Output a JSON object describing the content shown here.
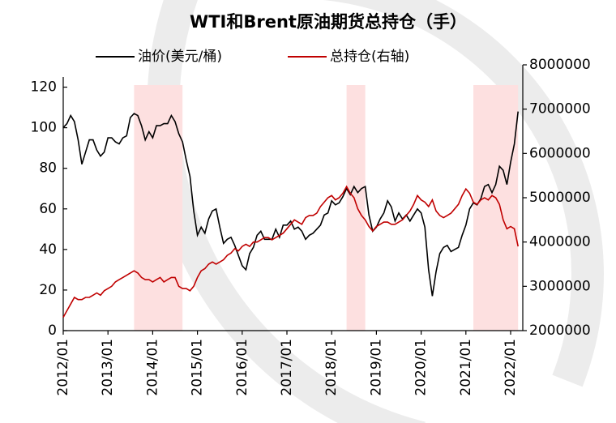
{
  "chart_data": {
    "type": "line",
    "title": "WTI和Brent原油期货总持仓（手）",
    "x": [
      "2012/01",
      "2012/02",
      "2012/03",
      "2012/04",
      "2012/05",
      "2012/06",
      "2012/07",
      "2012/08",
      "2012/09",
      "2012/10",
      "2012/11",
      "2012/12",
      "2013/01",
      "2013/02",
      "2013/03",
      "2013/04",
      "2013/05",
      "2013/06",
      "2013/07",
      "2013/08",
      "2013/09",
      "2013/10",
      "2013/11",
      "2013/12",
      "2014/01",
      "2014/02",
      "2014/03",
      "2014/04",
      "2014/05",
      "2014/06",
      "2014/07",
      "2014/08",
      "2014/09",
      "2014/10",
      "2014/11",
      "2014/12",
      "2015/01",
      "2015/02",
      "2015/03",
      "2015/04",
      "2015/05",
      "2015/06",
      "2015/07",
      "2015/08",
      "2015/09",
      "2015/10",
      "2015/11",
      "2015/12",
      "2016/01",
      "2016/02",
      "2016/03",
      "2016/04",
      "2016/05",
      "2016/06",
      "2016/07",
      "2016/08",
      "2016/09",
      "2016/10",
      "2016/11",
      "2016/12",
      "2017/01",
      "2017/02",
      "2017/03",
      "2017/04",
      "2017/05",
      "2017/06",
      "2017/07",
      "2017/08",
      "2017/09",
      "2017/10",
      "2017/11",
      "2017/12",
      "2018/01",
      "2018/02",
      "2018/03",
      "2018/04",
      "2018/05",
      "2018/06",
      "2018/07",
      "2018/08",
      "2018/09",
      "2018/10",
      "2018/11",
      "2018/12",
      "2019/01",
      "2019/02",
      "2019/03",
      "2019/04",
      "2019/05",
      "2019/06",
      "2019/07",
      "2019/08",
      "2019/09",
      "2019/10",
      "2019/11",
      "2019/12",
      "2020/01",
      "2020/02",
      "2020/03",
      "2020/04",
      "2020/05",
      "2020/06",
      "2020/07",
      "2020/08",
      "2020/09",
      "2020/10",
      "2020/11",
      "2020/12",
      "2021/01",
      "2021/02",
      "2021/03",
      "2021/04",
      "2021/05",
      "2021/06",
      "2021/07",
      "2021/08",
      "2021/09",
      "2021/10",
      "2021/11",
      "2021/12",
      "2022/01",
      "2022/02",
      "2022/03"
    ],
    "xticks": [
      "2012/01",
      "2013/01",
      "2014/01",
      "2015/01",
      "2016/01",
      "2017/01",
      "2018/01",
      "2019/01",
      "2020/01",
      "2021/01",
      "2022/01"
    ],
    "series": [
      {
        "name": "油价(美元/桶)",
        "color": "#000000",
        "axis": "y",
        "values": [
          100,
          102,
          106,
          103,
          94,
          82,
          88,
          94,
          94,
          89,
          86,
          88,
          95,
          95,
          93,
          92,
          95,
          96,
          105,
          107,
          106,
          101,
          94,
          98,
          95,
          101,
          101,
          102,
          102,
          106,
          103,
          97,
          93,
          84,
          76,
          59,
          47,
          51,
          48,
          55,
          59,
          60,
          51,
          43,
          45,
          46,
          42,
          37,
          32,
          30,
          38,
          41,
          47,
          49,
          45,
          45,
          45,
          50,
          46,
          52,
          52,
          54,
          50,
          51,
          49,
          45,
          47,
          48,
          50,
          52,
          57,
          58,
          64,
          62,
          63,
          66,
          70,
          67,
          71,
          68,
          70,
          71,
          57,
          49,
          51,
          55,
          58,
          64,
          61,
          54,
          58,
          55,
          57,
          54,
          57,
          60,
          58,
          51,
          30,
          17,
          29,
          38,
          41,
          42,
          39,
          40,
          41,
          47,
          52,
          60,
          63,
          62,
          65,
          71,
          72,
          68,
          72,
          81,
          79,
          72,
          83,
          92,
          108
        ]
      },
      {
        "name": "总持仓(右轴)",
        "color": "#c00000",
        "axis": "y2",
        "values": [
          2300000,
          2450000,
          2600000,
          2750000,
          2700000,
          2700000,
          2750000,
          2750000,
          2800000,
          2850000,
          2800000,
          2900000,
          2950000,
          3000000,
          3100000,
          3150000,
          3200000,
          3250000,
          3300000,
          3350000,
          3300000,
          3200000,
          3150000,
          3150000,
          3100000,
          3150000,
          3200000,
          3100000,
          3150000,
          3200000,
          3200000,
          3000000,
          2950000,
          2950000,
          2900000,
          3000000,
          3200000,
          3350000,
          3400000,
          3500000,
          3550000,
          3500000,
          3550000,
          3600000,
          3700000,
          3750000,
          3850000,
          3800000,
          3900000,
          3950000,
          3900000,
          4000000,
          4000000,
          4050000,
          4100000,
          4100000,
          4050000,
          4100000,
          4150000,
          4200000,
          4300000,
          4400000,
          4500000,
          4450000,
          4400000,
          4550000,
          4600000,
          4600000,
          4650000,
          4800000,
          4900000,
          5000000,
          5050000,
          4950000,
          5000000,
          5100000,
          5250000,
          5100000,
          5000000,
          4750000,
          4600000,
          4500000,
          4350000,
          4250000,
          4350000,
          4400000,
          4450000,
          4450000,
          4400000,
          4400000,
          4450000,
          4500000,
          4600000,
          4700000,
          4850000,
          5050000,
          4950000,
          4900000,
          4800000,
          4950000,
          4700000,
          4600000,
          4550000,
          4600000,
          4650000,
          4750000,
          4850000,
          5050000,
          5200000,
          5100000,
          4900000,
          4850000,
          4950000,
          5000000,
          4950000,
          5050000,
          5000000,
          4850000,
          4500000,
          4300000,
          4350000,
          4300000,
          3900000
        ]
      }
    ],
    "ylim": [
      0,
      131
    ],
    "yticks": [
      0,
      20,
      40,
      60,
      80,
      100,
      120
    ],
    "y2lim": [
      2000000,
      8000000
    ],
    "y2ticks": [
      2000000,
      3000000,
      4000000,
      5000000,
      6000000,
      7000000,
      8000000
    ],
    "shaded_periods": [
      [
        "2013/08",
        "2014/09"
      ],
      [
        "2018/05",
        "2018/10"
      ],
      [
        "2021/03",
        "2022/03"
      ]
    ],
    "shade_color": "#fde0e0",
    "legend": "top"
  }
}
